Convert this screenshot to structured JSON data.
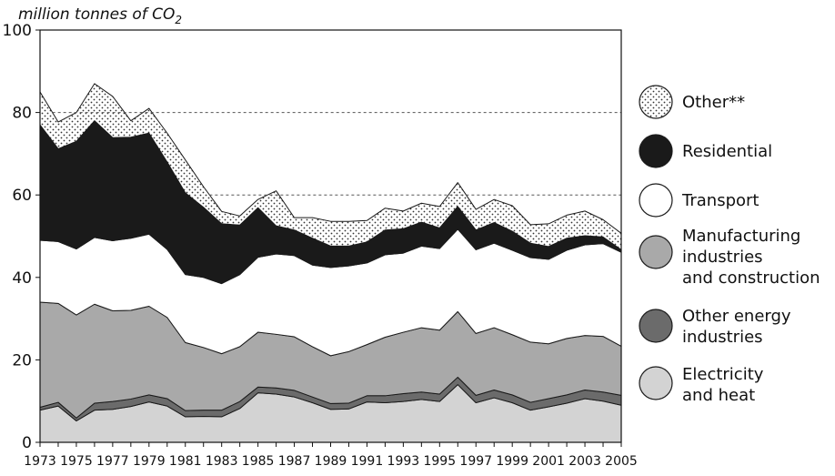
{
  "chart_data": {
    "type": "area",
    "stacked": true,
    "ylabel": "million tonnes of CO",
    "ylabel_subscript": "2",
    "ylim": [
      0,
      100
    ],
    "yticks": [
      0,
      20,
      40,
      60,
      80,
      100
    ],
    "reference_lines": [
      60,
      80
    ],
    "x": [
      1973,
      1974,
      1975,
      1976,
      1977,
      1978,
      1979,
      1980,
      1981,
      1982,
      1983,
      1984,
      1985,
      1986,
      1987,
      1988,
      1989,
      1990,
      1991,
      1992,
      1993,
      1994,
      1995,
      1996,
      1997,
      1998,
      1999,
      2000,
      2001,
      2002,
      2003,
      2004,
      2005
    ],
    "xtick_labels": [
      "1973",
      "1975",
      "1977",
      "1979",
      "1981",
      "1983",
      "1985",
      "1987",
      "1989",
      "1991",
      "1993",
      "1995",
      "1997",
      "1999",
      "2001",
      "2003",
      "2005"
    ],
    "series": [
      {
        "name": "Electricity\nand heat",
        "color": "#d3d3d3",
        "values": [
          7.8,
          8.8,
          5.2,
          7.8,
          8.0,
          8.7,
          9.8,
          8.8,
          6.2,
          6.3,
          6.2,
          8.2,
          12.0,
          11.7,
          11.0,
          9.6,
          8.0,
          8.1,
          9.8,
          9.6,
          9.9,
          10.4,
          9.9,
          14.0,
          9.6,
          10.8,
          9.6,
          7.8,
          8.6,
          9.5,
          10.6,
          10.0,
          9.0
        ]
      },
      {
        "name": "Other energy\nindustries",
        "color": "#6b6b6b",
        "values": [
          0.7,
          0.9,
          0.7,
          1.7,
          1.9,
          1.8,
          1.7,
          1.8,
          1.5,
          1.5,
          1.6,
          1.7,
          1.4,
          1.5,
          1.6,
          1.4,
          1.4,
          1.4,
          1.5,
          1.7,
          1.9,
          1.8,
          1.8,
          1.8,
          1.8,
          1.9,
          1.9,
          1.9,
          2.0,
          2.0,
          2.1,
          2.2,
          2.4
        ]
      },
      {
        "name": "Manufacturing\nindustries\nand construction",
        "color": "#a9a9a9",
        "values": [
          25.5,
          24.0,
          25.0,
          24.0,
          22.0,
          21.5,
          21.5,
          19.7,
          16.5,
          15.2,
          13.7,
          13.3,
          13.3,
          13.0,
          13.0,
          12.2,
          11.6,
          12.5,
          12.4,
          14.2,
          14.9,
          15.6,
          15.5,
          15.9,
          15.0,
          15.1,
          14.6,
          14.6,
          13.3,
          13.7,
          13.2,
          13.5,
          11.9
        ]
      },
      {
        "name": "Transport",
        "color": "#ffffff",
        "values": [
          15.0,
          15.0,
          16.0,
          16.2,
          17.0,
          17.5,
          17.5,
          16.5,
          16.5,
          17.0,
          17.0,
          17.5,
          18.2,
          19.5,
          19.7,
          19.8,
          21.4,
          20.8,
          19.8,
          20.0,
          19.2,
          19.8,
          19.8,
          20.0,
          20.3,
          20.5,
          20.5,
          20.5,
          20.5,
          21.4,
          22.0,
          22.5,
          22.8
        ]
      },
      {
        "name": "Residential",
        "color": "#1a1a1a",
        "values": [
          28.0,
          22.5,
          26.1,
          28.3,
          25.0,
          24.5,
          24.5,
          21.2,
          19.8,
          17.0,
          14.5,
          12.0,
          12.0,
          6.8,
          6.2,
          6.5,
          5.2,
          4.8,
          5.1,
          6.0,
          5.9,
          5.8,
          5.0,
          5.5,
          4.8,
          5.0,
          4.6,
          3.5,
          3.1,
          2.9,
          2.2,
          1.6,
          0.6
        ]
      },
      {
        "name": "Other**",
        "color": "#e6e6e6",
        "pattern": "dots",
        "values": [
          8.0,
          6.5,
          7.0,
          9.0,
          10.0,
          4.0,
          6.0,
          7.0,
          8.0,
          5.0,
          3.0,
          2.2,
          2.0,
          8.5,
          3.0,
          5.0,
          6.0,
          6.0,
          5.2,
          5.3,
          4.3,
          4.6,
          5.2,
          5.8,
          5.0,
          5.6,
          6.2,
          4.5,
          5.5,
          5.6,
          6.0,
          4.2,
          4.0
        ]
      }
    ],
    "legend_order": [
      "Other**",
      "Residential",
      "Transport",
      "Manufacturing\nindustries\nand construction",
      "Other energy\nindustries",
      "Electricity\nand heat"
    ],
    "legend_placement": "right"
  }
}
